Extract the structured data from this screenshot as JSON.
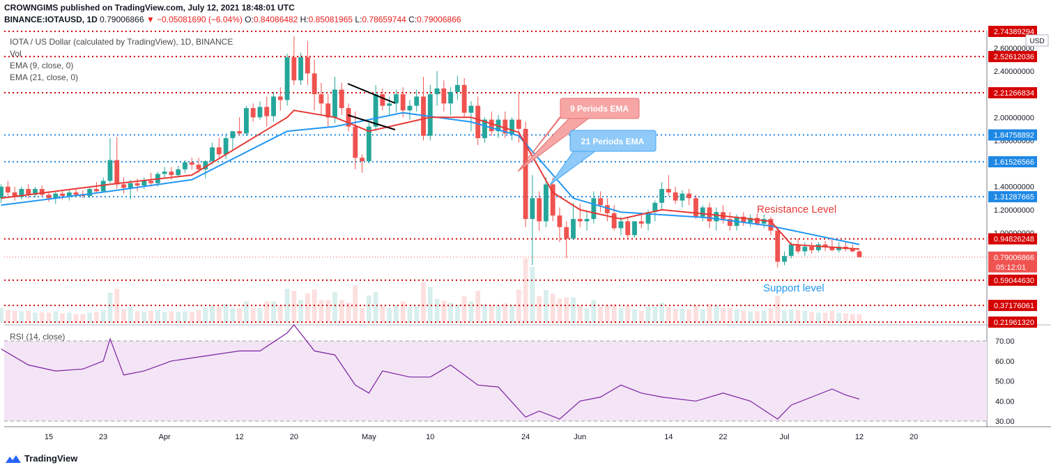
{
  "header": {
    "publisher_line": "CROWNGIMS published on TradingView.com, July 12, 2021 18:48:01 UTC",
    "symbol": "BINANCE:IOTAUSD, 1D",
    "price": "0.79006866",
    "change": "−0.05081690 (−6.04%)",
    "o_label": "O:",
    "o": "0.84086482",
    "h_label": "H:",
    "h": "0.85081965",
    "l_label": "L:",
    "l": "0.78659744",
    "c_label": "C:",
    "c": "0.79006866"
  },
  "legend": {
    "title": "IOTA / US Dollar (calculated by TradingView), 1D, BINANCE",
    "vol": "Vol",
    "ema9": "EMA (9, close, 0)",
    "ema21": "EMA (21, close, 0)",
    "rsi": "RSI (14, close)"
  },
  "annotations": {
    "ema9_callout": "9 Periods EMA",
    "ema21_callout": "21 Periods EMA",
    "resistance": "Resistance Level",
    "support": "Support level"
  },
  "footer": {
    "brand": "TradingView"
  },
  "colors": {
    "up": "#26a69a",
    "down": "#ef5350",
    "ema9": "#e53935",
    "ema21": "#2196f3",
    "level_red": "#d50000",
    "level_blue": "#1e88e5",
    "rsi": "#7b1fa2",
    "rsi_band": "#f3e5f5"
  },
  "chart_data": {
    "type": "candlestick",
    "title": "IOTA / US Dollar (calculated by TradingView), 1D, BINANCE",
    "currency": "USD",
    "y_ticks": [
      "2.60000000",
      "2.40000000",
      "2.00000000",
      "1.80000000",
      "1.40000000",
      "1.20000000",
      "1.00000000"
    ],
    "y_tick_values": [
      2.6,
      2.4,
      2.0,
      1.8,
      1.4,
      1.2,
      1.0
    ],
    "x_ticks": [
      "15",
      "23",
      "Apr",
      "12",
      "20",
      "May",
      "10",
      "24",
      "Jun",
      "14",
      "22",
      "Jul",
      "12",
      "20"
    ],
    "x_tick_values": [
      "2021-03-15",
      "2021-03-23",
      "2021-04-01",
      "2021-04-12",
      "2021-04-20",
      "2021-05-01",
      "2021-05-10",
      "2021-05-24",
      "2021-06-01",
      "2021-06-14",
      "2021-06-22",
      "2021-07-01",
      "2021-07-12",
      "2021-07-20"
    ],
    "ohlc": [
      [
        "2021-03-08",
        1.3,
        1.42,
        1.26,
        1.4
      ],
      [
        "2021-03-09",
        1.4,
        1.45,
        1.32,
        1.35
      ],
      [
        "2021-03-10",
        1.35,
        1.4,
        1.28,
        1.31
      ],
      [
        "2021-03-11",
        1.31,
        1.4,
        1.29,
        1.38
      ],
      [
        "2021-03-12",
        1.38,
        1.42,
        1.3,
        1.33
      ],
      [
        "2021-03-13",
        1.33,
        1.4,
        1.31,
        1.38
      ],
      [
        "2021-03-14",
        1.38,
        1.41,
        1.31,
        1.33
      ],
      [
        "2021-03-15",
        1.33,
        1.36,
        1.27,
        1.3
      ],
      [
        "2021-03-16",
        1.3,
        1.36,
        1.25,
        1.34
      ],
      [
        "2021-03-17",
        1.34,
        1.37,
        1.29,
        1.32
      ],
      [
        "2021-03-18",
        1.32,
        1.37,
        1.28,
        1.35
      ],
      [
        "2021-03-19",
        1.35,
        1.38,
        1.31,
        1.33
      ],
      [
        "2021-03-20",
        1.33,
        1.37,
        1.3,
        1.32
      ],
      [
        "2021-03-21",
        1.32,
        1.39,
        1.3,
        1.38
      ],
      [
        "2021-03-22",
        1.38,
        1.44,
        1.34,
        1.36
      ],
      [
        "2021-03-23",
        1.36,
        1.48,
        1.35,
        1.45
      ],
      [
        "2021-03-24",
        1.45,
        1.82,
        1.43,
        1.63
      ],
      [
        "2021-03-25",
        1.63,
        1.83,
        1.38,
        1.42
      ],
      [
        "2021-03-26",
        1.42,
        1.48,
        1.34,
        1.39
      ],
      [
        "2021-03-27",
        1.39,
        1.46,
        1.29,
        1.43
      ],
      [
        "2021-03-28",
        1.43,
        1.47,
        1.36,
        1.41
      ],
      [
        "2021-03-29",
        1.41,
        1.48,
        1.38,
        1.45
      ],
      [
        "2021-03-30",
        1.45,
        1.52,
        1.4,
        1.43
      ],
      [
        "2021-03-31",
        1.43,
        1.53,
        1.4,
        1.51
      ],
      [
        "2021-04-01",
        1.51,
        1.57,
        1.47,
        1.53
      ],
      [
        "2021-04-02",
        1.53,
        1.57,
        1.46,
        1.5
      ],
      [
        "2021-04-03",
        1.5,
        1.58,
        1.48,
        1.55
      ],
      [
        "2021-04-04",
        1.55,
        1.63,
        1.52,
        1.61
      ],
      [
        "2021-04-05",
        1.61,
        1.65,
        1.55,
        1.59
      ],
      [
        "2021-04-06",
        1.59,
        1.65,
        1.52,
        1.55
      ],
      [
        "2021-04-07",
        1.55,
        1.63,
        1.47,
        1.62
      ],
      [
        "2021-04-08",
        1.62,
        1.78,
        1.59,
        1.74
      ],
      [
        "2021-04-09",
        1.74,
        1.82,
        1.64,
        1.68
      ],
      [
        "2021-04-10",
        1.68,
        1.86,
        1.64,
        1.82
      ],
      [
        "2021-04-11",
        1.82,
        1.88,
        1.72,
        1.88
      ],
      [
        "2021-04-12",
        1.88,
        2.0,
        1.84,
        1.86
      ],
      [
        "2021-04-13",
        1.86,
        2.1,
        1.84,
        2.08
      ],
      [
        "2021-04-14",
        2.08,
        2.12,
        1.96,
        2.0
      ],
      [
        "2021-04-15",
        2.0,
        2.14,
        1.98,
        2.09
      ],
      [
        "2021-04-16",
        2.09,
        2.18,
        1.92,
        2.01
      ],
      [
        "2021-04-17",
        2.01,
        2.22,
        1.96,
        2.18
      ],
      [
        "2021-04-18",
        2.18,
        2.26,
        2.06,
        2.15
      ],
      [
        "2021-04-19",
        2.15,
        2.55,
        2.1,
        2.52
      ],
      [
        "2021-04-20",
        2.52,
        2.7,
        2.28,
        2.32
      ],
      [
        "2021-04-21",
        2.32,
        2.56,
        2.28,
        2.52
      ],
      [
        "2021-04-22",
        2.52,
        2.66,
        2.28,
        2.38
      ],
      [
        "2021-04-23",
        2.38,
        2.5,
        2.06,
        2.2
      ],
      [
        "2021-04-24",
        2.2,
        2.3,
        2.02,
        2.12
      ],
      [
        "2021-04-25",
        2.12,
        2.2,
        1.92,
        2.0
      ],
      [
        "2021-04-26",
        2.0,
        2.35,
        1.95,
        2.24
      ],
      [
        "2021-04-27",
        2.24,
        2.3,
        2.02,
        2.08
      ],
      [
        "2021-04-28",
        2.08,
        2.12,
        1.88,
        1.92
      ],
      [
        "2021-04-29",
        1.92,
        2.05,
        1.55,
        1.65
      ],
      [
        "2021-04-30",
        1.65,
        1.68,
        1.52,
        1.62
      ],
      [
        "2021-05-01",
        1.62,
        1.95,
        1.6,
        1.92
      ],
      [
        "2021-05-02",
        1.92,
        2.28,
        1.88,
        2.2
      ],
      [
        "2021-05-03",
        2.2,
        2.25,
        2.06,
        2.1
      ],
      [
        "2021-05-04",
        2.1,
        2.18,
        2.02,
        2.12
      ],
      [
        "2021-05-05",
        2.12,
        2.24,
        2.04,
        2.2
      ],
      [
        "2021-05-06",
        2.2,
        2.26,
        2.0,
        2.06
      ],
      [
        "2021-05-07",
        2.06,
        2.15,
        1.98,
        2.1
      ],
      [
        "2021-05-08",
        2.1,
        2.24,
        2.05,
        2.18
      ],
      [
        "2021-05-09",
        2.18,
        2.35,
        1.8,
        1.84
      ],
      [
        "2021-05-10",
        1.84,
        2.28,
        1.8,
        2.2
      ],
      [
        "2021-05-11",
        2.2,
        2.4,
        2.1,
        2.25
      ],
      [
        "2021-05-12",
        2.25,
        2.32,
        2.05,
        2.12
      ],
      [
        "2021-05-13",
        2.12,
        2.26,
        2.02,
        2.22
      ],
      [
        "2021-05-14",
        2.22,
        2.36,
        2.15,
        2.28
      ],
      [
        "2021-05-15",
        2.28,
        2.34,
        2.0,
        2.04
      ],
      [
        "2021-05-16",
        2.04,
        2.14,
        1.88,
        2.1
      ],
      [
        "2021-05-17",
        2.1,
        2.18,
        1.76,
        1.82
      ],
      [
        "2021-05-18",
        1.82,
        2.0,
        1.78,
        1.98
      ],
      [
        "2021-05-19",
        1.98,
        2.05,
        1.84,
        1.88
      ],
      [
        "2021-05-20",
        1.88,
        2.02,
        1.82,
        1.98
      ],
      [
        "2021-05-21",
        1.98,
        2.05,
        1.82,
        1.86
      ],
      [
        "2021-05-22",
        1.86,
        2.0,
        1.8,
        1.98
      ],
      [
        "2021-05-23",
        1.98,
        2.22,
        1.78,
        1.9
      ],
      [
        "2021-05-24",
        1.9,
        1.96,
        1.05,
        1.12
      ],
      [
        "2021-05-25",
        1.12,
        1.5,
        0.72,
        1.3
      ],
      [
        "2021-05-26",
        1.3,
        1.36,
        1.02,
        1.1
      ],
      [
        "2021-05-27",
        1.1,
        1.48,
        1.05,
        1.42
      ],
      [
        "2021-05-28",
        1.42,
        1.48,
        1.1,
        1.15
      ],
      [
        "2021-05-29",
        1.15,
        1.22,
        0.92,
        1.05
      ],
      [
        "2021-05-30",
        1.05,
        1.1,
        0.78,
        0.95
      ],
      [
        "2021-05-31",
        0.95,
        1.26,
        0.94,
        1.12
      ],
      [
        "2021-06-01",
        1.12,
        1.25,
        1.05,
        1.1
      ],
      [
        "2021-06-02",
        1.1,
        1.18,
        1.02,
        1.12
      ],
      [
        "2021-06-03",
        1.12,
        1.36,
        1.08,
        1.3
      ],
      [
        "2021-06-04",
        1.3,
        1.36,
        1.18,
        1.24
      ],
      [
        "2021-06-05",
        1.24,
        1.3,
        1.1,
        1.17
      ],
      [
        "2021-06-06",
        1.17,
        1.24,
        1.02,
        1.04
      ],
      [
        "2021-06-07",
        1.04,
        1.14,
        0.98,
        1.1
      ],
      [
        "2021-06-08",
        1.1,
        1.14,
        0.95,
        0.98
      ],
      [
        "2021-06-09",
        0.98,
        1.1,
        0.96,
        1.1
      ],
      [
        "2021-06-10",
        1.1,
        1.16,
        1.04,
        1.08
      ],
      [
        "2021-06-11",
        1.08,
        1.2,
        1.02,
        1.18
      ],
      [
        "2021-06-12",
        1.18,
        1.28,
        1.1,
        1.26
      ],
      [
        "2021-06-13",
        1.26,
        1.44,
        1.2,
        1.38
      ],
      [
        "2021-06-14",
        1.38,
        1.5,
        1.32,
        1.35
      ],
      [
        "2021-06-15",
        1.35,
        1.4,
        1.25,
        1.28
      ],
      [
        "2021-06-16",
        1.28,
        1.37,
        1.22,
        1.34
      ],
      [
        "2021-06-17",
        1.34,
        1.38,
        1.24,
        1.3
      ],
      [
        "2021-06-18",
        1.3,
        1.33,
        1.12,
        1.14
      ],
      [
        "2021-06-19",
        1.14,
        1.24,
        1.1,
        1.22
      ],
      [
        "2021-06-20",
        1.22,
        1.26,
        1.04,
        1.1
      ],
      [
        "2021-06-21",
        1.1,
        1.22,
        1.02,
        1.18
      ],
      [
        "2021-06-22",
        1.18,
        1.24,
        1.08,
        1.12
      ],
      [
        "2021-06-23",
        1.12,
        1.18,
        1.02,
        1.06
      ],
      [
        "2021-06-24",
        1.06,
        1.16,
        1.02,
        1.14
      ],
      [
        "2021-06-25",
        1.14,
        1.18,
        1.06,
        1.09
      ],
      [
        "2021-06-26",
        1.09,
        1.16,
        1.05,
        1.13
      ],
      [
        "2021-06-27",
        1.13,
        1.17,
        1.06,
        1.08
      ],
      [
        "2021-06-28",
        1.08,
        1.16,
        1.04,
        1.12
      ],
      [
        "2021-06-29",
        1.12,
        1.14,
        0.98,
        1.02
      ],
      [
        "2021-06-30",
        1.02,
        1.04,
        0.7,
        0.75
      ],
      [
        "2021-07-01",
        0.75,
        0.84,
        0.72,
        0.8
      ],
      [
        "2021-07-02",
        0.8,
        0.92,
        0.78,
        0.9
      ],
      [
        "2021-07-03",
        0.9,
        0.95,
        0.82,
        0.84
      ],
      [
        "2021-07-04",
        0.84,
        0.92,
        0.8,
        0.88
      ],
      [
        "2021-07-05",
        0.88,
        0.92,
        0.82,
        0.85
      ],
      [
        "2021-07-06",
        0.85,
        0.92,
        0.83,
        0.9
      ],
      [
        "2021-07-07",
        0.9,
        0.93,
        0.84,
        0.88
      ],
      [
        "2021-07-08",
        0.88,
        0.96,
        0.84,
        0.85
      ],
      [
        "2021-07-09",
        0.85,
        0.92,
        0.83,
        0.88
      ],
      [
        "2021-07-10",
        0.88,
        0.92,
        0.84,
        0.86
      ],
      [
        "2021-07-11",
        0.86,
        0.9,
        0.83,
        0.84
      ],
      [
        "2021-07-12",
        0.84,
        0.851,
        0.787,
        0.79
      ]
    ],
    "ema9": [
      [
        "2021-03-08",
        1.3
      ],
      [
        "2021-03-24",
        1.42
      ],
      [
        "2021-04-05",
        1.5
      ],
      [
        "2021-04-19",
        2.0
      ],
      [
        "2021-04-20",
        2.06
      ],
      [
        "2021-04-26",
        2.0
      ],
      [
        "2021-05-01",
        1.88
      ],
      [
        "2021-05-10",
        2.0
      ],
      [
        "2021-05-16",
        2.0
      ],
      [
        "2021-05-23",
        1.87
      ],
      [
        "2021-05-28",
        1.35
      ],
      [
        "2021-06-01",
        1.2
      ],
      [
        "2021-06-07",
        1.12
      ],
      [
        "2021-06-13",
        1.2
      ],
      [
        "2021-06-20",
        1.16
      ],
      [
        "2021-06-29",
        1.1
      ],
      [
        "2021-07-02",
        0.9
      ],
      [
        "2021-07-12",
        0.86
      ]
    ],
    "ema21": [
      [
        "2021-03-08",
        1.24
      ],
      [
        "2021-03-24",
        1.36
      ],
      [
        "2021-04-05",
        1.46
      ],
      [
        "2021-04-19",
        1.88
      ],
      [
        "2021-04-26",
        1.92
      ],
      [
        "2021-05-06",
        2.04
      ],
      [
        "2021-05-16",
        1.96
      ],
      [
        "2021-05-23",
        1.84
      ],
      [
        "2021-05-31",
        1.3
      ],
      [
        "2021-06-07",
        1.18
      ],
      [
        "2021-06-20",
        1.13
      ],
      [
        "2021-06-29",
        1.06
      ],
      [
        "2021-07-12",
        0.9
      ]
    ],
    "levels": [
      {
        "value": "2.74389294",
        "color": "red"
      },
      {
        "value": "2.52612036",
        "color": "red"
      },
      {
        "value": "2.21266834",
        "color": "red"
      },
      {
        "value": "1.84758892",
        "color": "blue"
      },
      {
        "value": "1.61526566",
        "color": "blue"
      },
      {
        "value": "1.31287665",
        "color": "blue"
      },
      {
        "value": "0.94826248",
        "color": "red"
      },
      {
        "value": "0.59044630",
        "color": "red"
      },
      {
        "value": "0.37176061",
        "color": "red"
      },
      {
        "value": "0.21961320",
        "color": "red"
      }
    ],
    "last_price": "0.79006866",
    "countdown": "05:12:01",
    "rsi_ticks": [
      "70.00",
      "60.00",
      "50.00",
      "40.00",
      "30.00"
    ],
    "rsi_tick_values": [
      70,
      60,
      50,
      40,
      30
    ],
    "rsi_band": [
      30,
      70
    ],
    "rsi": [
      [
        "2021-03-08",
        66
      ],
      [
        "2021-03-12",
        58
      ],
      [
        "2021-03-16",
        55
      ],
      [
        "2021-03-20",
        56
      ],
      [
        "2021-03-23",
        60
      ],
      [
        "2021-03-24",
        71
      ],
      [
        "2021-03-26",
        53
      ],
      [
        "2021-03-29",
        55
      ],
      [
        "2021-04-02",
        60
      ],
      [
        "2021-04-08",
        63
      ],
      [
        "2021-04-12",
        65
      ],
      [
        "2021-04-15",
        65
      ],
      [
        "2021-04-19",
        74
      ],
      [
        "2021-04-20",
        78
      ],
      [
        "2021-04-23",
        65
      ],
      [
        "2021-04-26",
        63
      ],
      [
        "2021-04-29",
        48
      ],
      [
        "2021-05-01",
        44
      ],
      [
        "2021-05-03",
        55
      ],
      [
        "2021-05-07",
        52
      ],
      [
        "2021-05-10",
        52
      ],
      [
        "2021-05-13",
        58
      ],
      [
        "2021-05-17",
        48
      ],
      [
        "2021-05-20",
        47
      ],
      [
        "2021-05-24",
        32
      ],
      [
        "2021-05-26",
        35
      ],
      [
        "2021-05-29",
        31
      ],
      [
        "2021-06-01",
        40
      ],
      [
        "2021-06-04",
        42
      ],
      [
        "2021-06-07",
        48
      ],
      [
        "2021-06-10",
        44
      ],
      [
        "2021-06-13",
        42
      ],
      [
        "2021-06-18",
        40
      ],
      [
        "2021-06-22",
        44
      ],
      [
        "2021-06-26",
        40
      ],
      [
        "2021-06-30",
        31
      ],
      [
        "2021-07-02",
        38
      ],
      [
        "2021-07-05",
        42
      ],
      [
        "2021-07-08",
        46
      ],
      [
        "2021-07-10",
        43
      ],
      [
        "2021-07-12",
        41
      ]
    ],
    "x_range": [
      "2021-03-08",
      "2021-07-25"
    ]
  }
}
